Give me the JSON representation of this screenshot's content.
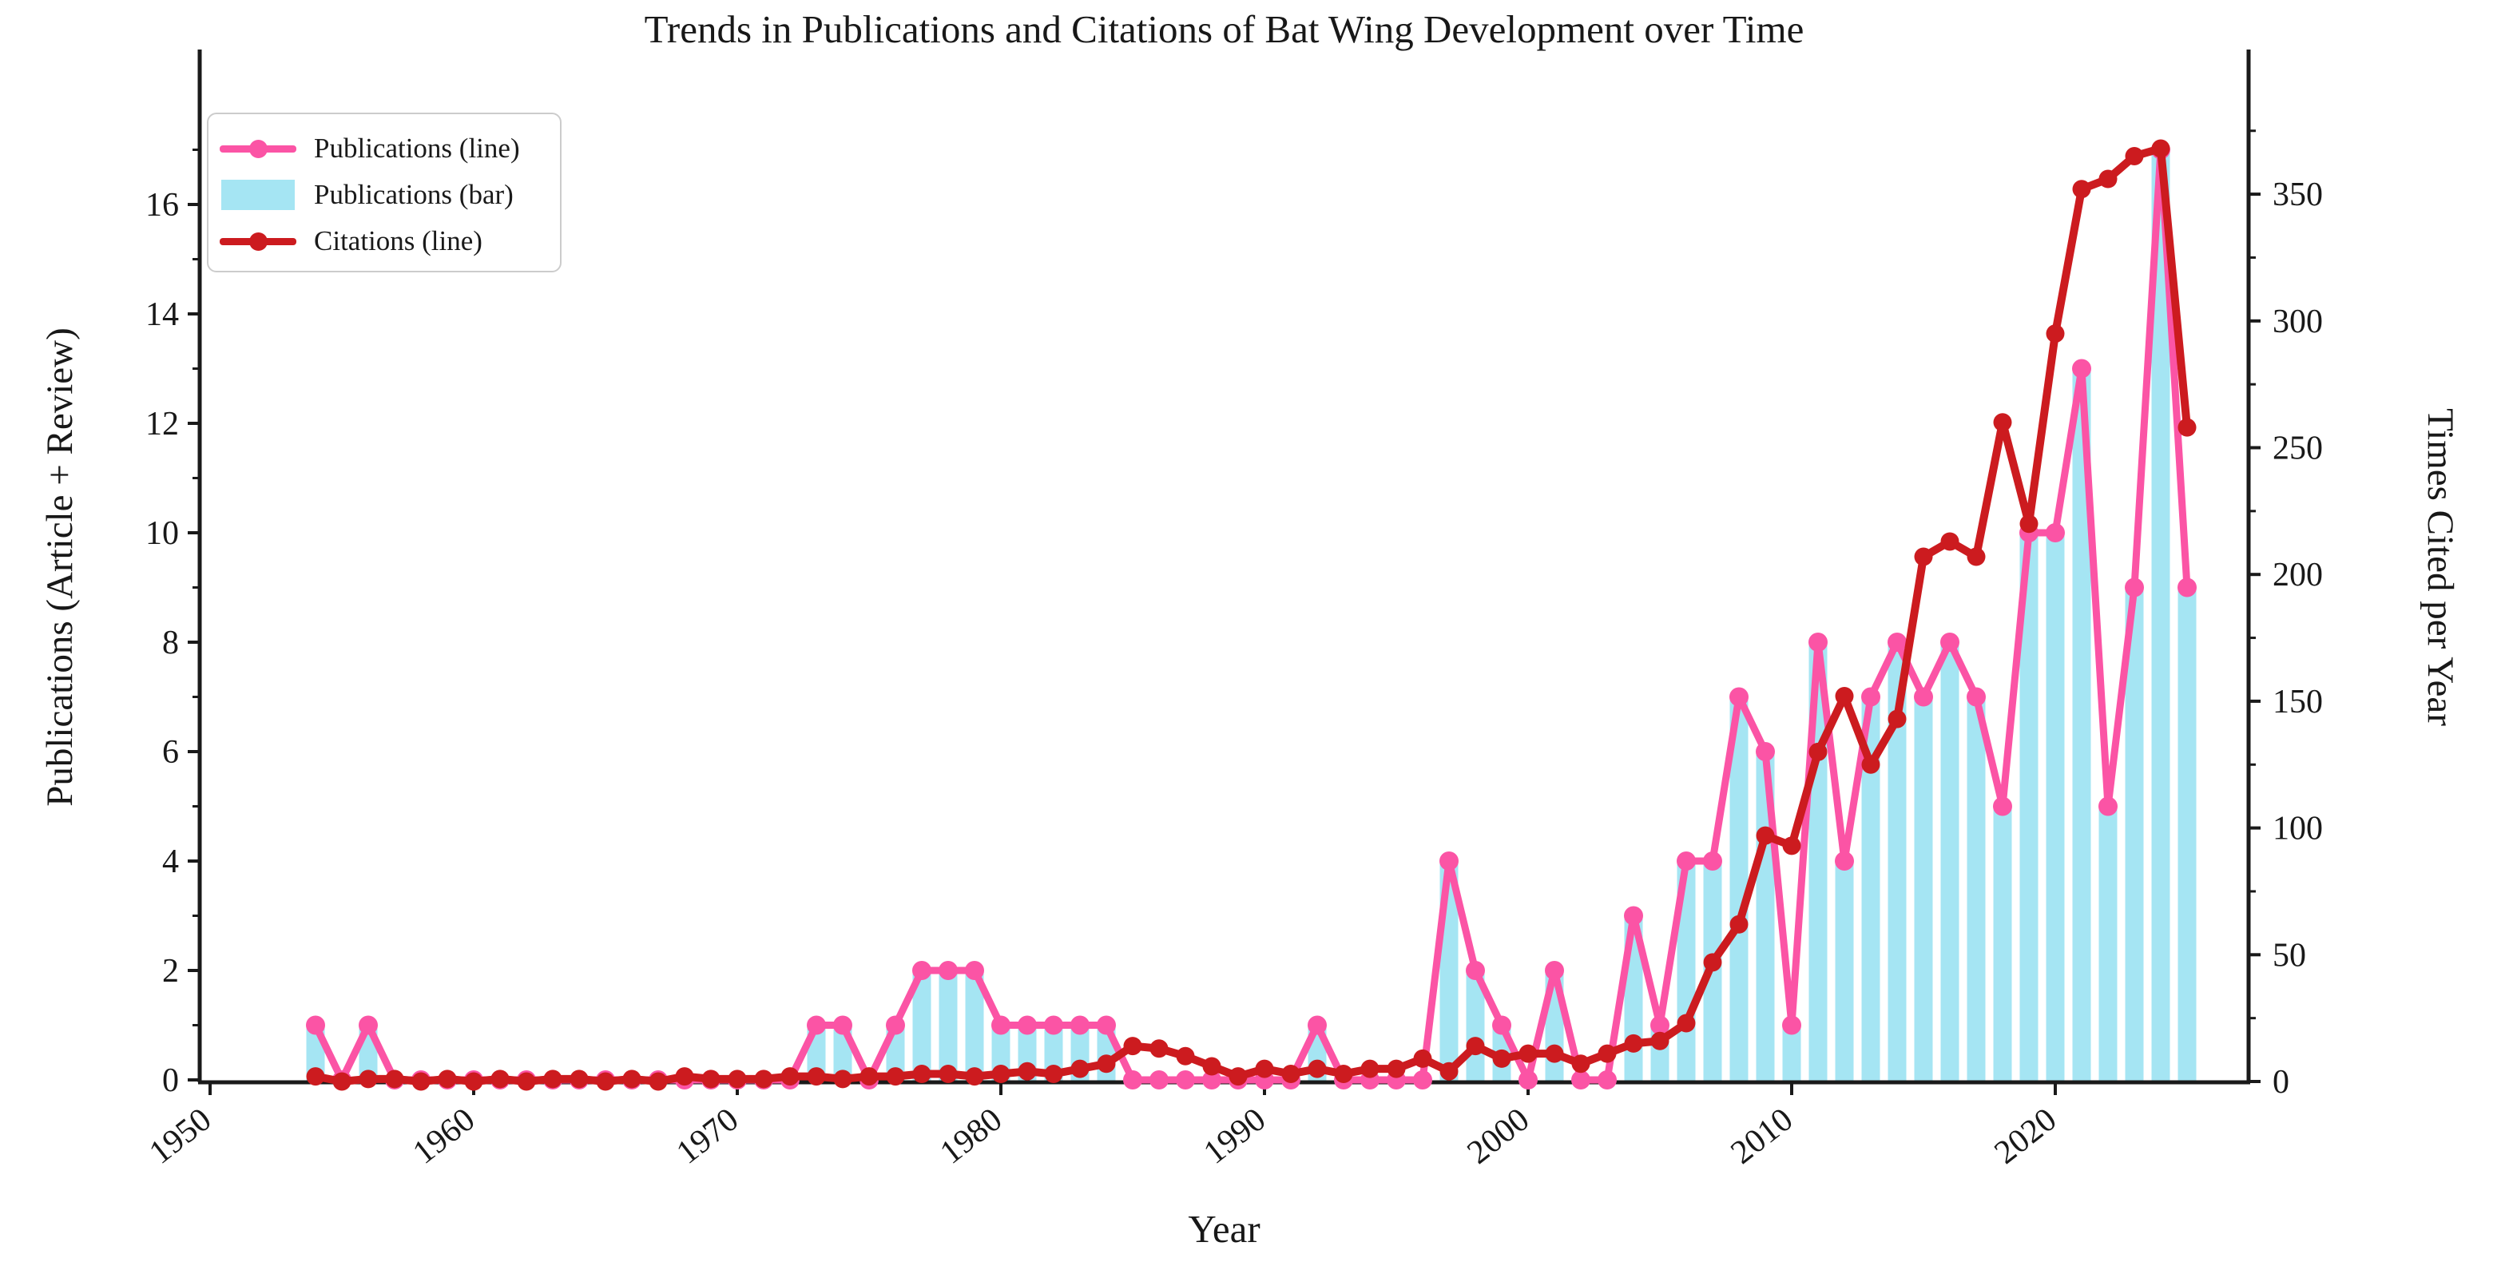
{
  "title": "Trends in Publications and Citations of Bat Wing Development over Time",
  "legend": {
    "publications_line_label": "Publications (line)",
    "publications_bar_label": "Publications (bar)",
    "citations_line_label": "Citations (line)"
  },
  "colors": {
    "publications_pink": "#fb54a5",
    "publications_bar_cyan": "#a5e5f3",
    "citations_red": "#cc1b1f",
    "axis_black": "#1a1a1a",
    "legend_border_gray": "#cccccc"
  },
  "chart_data": {
    "type": "composite (bar + 2 lines, dual y-axes)",
    "title": "Trends in Publications and Citations of Bat Wing Development over Time",
    "xlabel": "Year",
    "ylabel_left": "Publications (Article + Review)",
    "ylabel_right": "Times Cited per Year",
    "x_tick_labels": [
      1950,
      1960,
      1970,
      1980,
      1990,
      2000,
      2010,
      2020
    ],
    "y_left_tick_labels": [
      0,
      2,
      4,
      6,
      8,
      10,
      12,
      14,
      16
    ],
    "y_left_minor_ticks": [
      1,
      3,
      5,
      7,
      9,
      11,
      13,
      15,
      17
    ],
    "y_right_tick_labels": [
      0,
      50,
      100,
      150,
      200,
      250,
      300,
      350
    ],
    "y_right_minor_ticks": [
      25,
      75,
      125,
      175,
      225,
      275,
      325,
      375
    ],
    "y_left_lim": [
      0,
      18.8
    ],
    "y_right_lim": [
      0,
      407
    ],
    "x_lim": [
      1949.6,
      2027.3
    ],
    "grid": "off",
    "legend_position": "upper left",
    "years": [
      1954,
      1955,
      1956,
      1957,
      1958,
      1959,
      1960,
      1961,
      1962,
      1963,
      1964,
      1965,
      1966,
      1967,
      1968,
      1969,
      1970,
      1971,
      1972,
      1973,
      1974,
      1975,
      1976,
      1977,
      1978,
      1979,
      1980,
      1981,
      1982,
      1983,
      1984,
      1985,
      1986,
      1987,
      1988,
      1989,
      1990,
      1991,
      1992,
      1993,
      1994,
      1995,
      1996,
      1997,
      1998,
      1999,
      2000,
      2001,
      2002,
      2003,
      2004,
      2005,
      2006,
      2007,
      2008,
      2009,
      2010,
      2011,
      2012,
      2013,
      2014,
      2015,
      2016,
      2017,
      2018,
      2019,
      2020,
      2021,
      2022,
      2023,
      2024,
      2025
    ],
    "series": [
      {
        "name": "Publications (line)",
        "type": "line",
        "axis": "left",
        "color": "#fb54a5",
        "values": [
          1,
          0,
          1,
          0,
          0,
          0,
          0,
          0,
          0,
          0,
          0,
          0,
          0,
          0,
          0,
          0,
          0,
          0,
          0,
          1,
          1,
          0,
          1,
          2,
          2,
          2,
          1,
          1,
          1,
          1,
          1,
          0,
          0,
          0,
          0,
          0,
          0,
          0,
          1,
          0,
          0,
          0,
          0,
          4,
          2,
          1,
          0,
          2,
          0,
          0,
          3,
          1,
          4,
          4,
          7,
          6,
          1,
          8,
          4,
          7,
          8,
          7,
          8,
          7,
          5,
          10,
          10,
          13,
          5,
          9,
          17,
          9
        ]
      },
      {
        "name": "Publications (bar)",
        "type": "bar",
        "axis": "left",
        "color": "#a5e5f3",
        "values": [
          1,
          0,
          1,
          0,
          0,
          0,
          0,
          0,
          0,
          0,
          0,
          0,
          0,
          0,
          0,
          0,
          0,
          0,
          0,
          1,
          1,
          0,
          1,
          2,
          2,
          2,
          1,
          1,
          1,
          1,
          1,
          0,
          0,
          0,
          0,
          0,
          0,
          0,
          1,
          0,
          0,
          0,
          0,
          4,
          2,
          1,
          0,
          2,
          0,
          0,
          3,
          1,
          4,
          4,
          7,
          6,
          1,
          8,
          4,
          7,
          8,
          7,
          8,
          7,
          5,
          10,
          10,
          13,
          5,
          9,
          17,
          9
        ]
      },
      {
        "name": "Citations (line)",
        "type": "line",
        "axis": "right",
        "color": "#cc1b1f",
        "values": [
          2,
          0,
          1,
          1,
          0,
          1,
          0,
          1,
          0,
          1,
          1,
          0,
          1,
          0,
          2,
          1,
          1,
          1,
          2,
          2,
          1,
          2,
          2,
          3,
          3,
          2,
          3,
          4,
          3,
          5,
          7,
          14,
          13,
          10,
          6,
          2,
          5,
          3,
          5,
          3,
          5,
          5,
          9,
          4,
          14,
          9,
          11,
          11,
          7,
          11,
          15,
          16,
          23,
          47,
          62,
          97,
          93,
          130,
          152,
          125,
          143,
          207,
          213,
          207,
          260,
          220,
          295,
          352,
          356,
          365,
          368,
          258
        ]
      }
    ]
  }
}
